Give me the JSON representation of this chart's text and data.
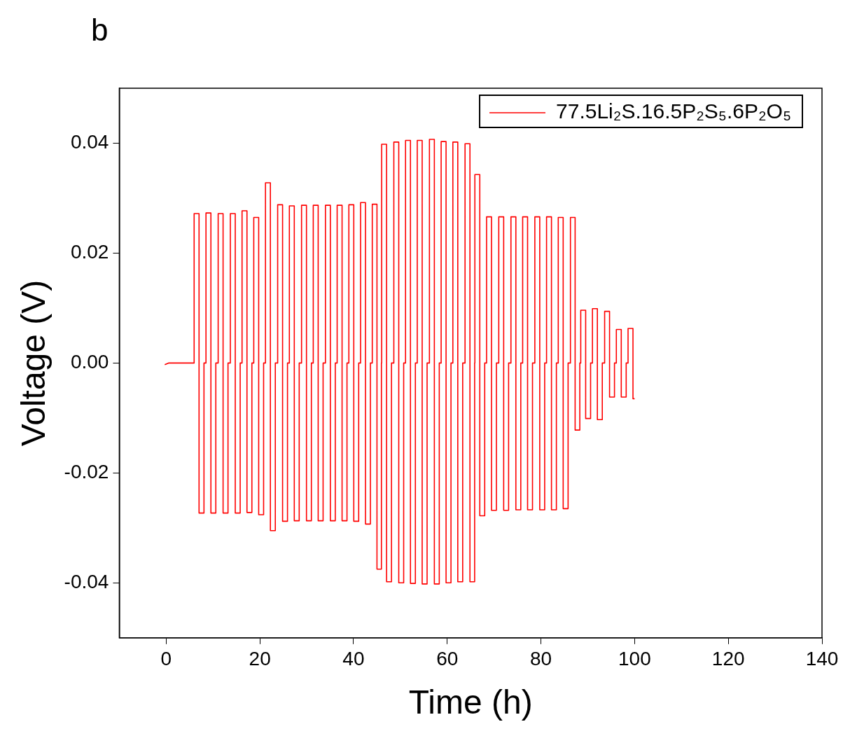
{
  "chart_data": {
    "type": "line",
    "annotations": [
      "b"
    ],
    "xlabel": "Time (h)",
    "ylabel": "Voltage (V)",
    "xlim": [
      -10,
      140
    ],
    "xticks": [
      0,
      20,
      40,
      60,
      80,
      100,
      120,
      140
    ],
    "ylim": [
      -0.05,
      0.05
    ],
    "yticks": [
      -0.04,
      -0.02,
      {
        "value": 0,
        "label": "0.00"
      },
      0.02,
      0.04
    ],
    "grid": false,
    "legend": "top right",
    "series": [
      {
        "name": "77.5Li₂S.16.5P₂S₅.6P₂O₅",
        "color": "#ff0000",
        "x": [
          -0.3,
          0.5,
          5.97,
          5.97,
          5.97,
          7.02,
          7.02,
          8.07,
          8.07,
          8.5,
          8.5,
          9.55,
          9.55,
          10.6,
          10.6,
          11.1,
          11.1,
          12.15,
          12.15,
          13.2,
          13.2,
          13.7,
          13.7,
          14.75,
          14.75,
          15.8,
          15.8,
          16.2,
          16.2,
          17.25,
          17.25,
          18.3,
          18.3,
          18.7,
          18.7,
          19.75,
          19.75,
          20.8,
          20.8,
          21.2,
          21.2,
          22.25,
          22.25,
          23.3,
          23.3,
          23.8,
          23.8,
          24.85,
          24.85,
          25.9,
          25.9,
          26.3,
          26.3,
          27.35,
          27.35,
          28.4,
          28.4,
          28.9,
          28.9,
          29.95,
          29.95,
          31.0,
          31.0,
          31.4,
          31.4,
          32.45,
          32.45,
          33.5,
          33.5,
          34.0,
          34.0,
          35.05,
          35.05,
          36.1,
          36.1,
          36.5,
          36.5,
          37.55,
          37.55,
          38.6,
          38.6,
          39.0,
          39.0,
          40.05,
          40.05,
          41.1,
          41.1,
          41.5,
          41.5,
          42.55,
          42.55,
          43.6,
          43.6,
          44.0,
          44.0,
          45.0,
          45.0,
          45.95,
          45.95,
          46.0,
          46.0,
          47.05,
          47.05,
          48.1,
          48.1,
          48.6,
          48.6,
          49.65,
          49.65,
          50.7,
          50.7,
          51.1,
          51.1,
          52.15,
          52.15,
          53.2,
          53.2,
          53.6,
          53.6,
          54.65,
          54.65,
          55.7,
          55.7,
          56.2,
          56.2,
          57.25,
          57.25,
          58.3,
          58.3,
          58.7,
          58.7,
          59.75,
          59.75,
          60.8,
          60.8,
          61.2,
          61.2,
          62.25,
          62.25,
          63.3,
          63.3,
          63.8,
          63.8,
          64.85,
          64.85,
          65.85,
          65.85,
          65.9,
          65.9,
          66.95,
          66.95,
          68.0,
          68.0,
          68.4,
          68.4,
          69.45,
          69.45,
          70.5,
          70.5,
          71.0,
          71.0,
          72.05,
          72.05,
          73.1,
          73.1,
          73.6,
          73.6,
          74.65,
          74.65,
          75.7,
          75.7,
          76.1,
          76.1,
          77.15,
          77.15,
          78.2,
          78.2,
          78.7,
          78.7,
          79.75,
          79.75,
          80.8,
          80.8,
          81.2,
          81.2,
          82.25,
          82.25,
          83.3,
          83.3,
          83.7,
          83.7,
          84.75,
          84.75,
          85.8,
          85.8,
          86.3,
          86.3,
          87.3,
          87.3,
          88.3,
          88.3,
          88.5,
          88.5,
          89.55,
          89.55,
          90.6,
          90.6,
          91.0,
          91.0,
          92.05,
          92.05,
          93.1,
          93.1,
          93.6,
          93.6,
          94.65,
          94.65,
          95.7,
          95.7,
          96.1,
          96.1,
          97.15,
          97.15,
          98.2,
          98.2,
          98.6,
          98.6,
          99.65,
          99.65,
          100.0
        ],
        "values": [
          -0.0003,
          0,
          0,
          0,
          0.0272,
          0.0272,
          -0.0273,
          -0.0273,
          0,
          0,
          0.0273,
          0.0273,
          -0.0273,
          -0.0273,
          0,
          0,
          0.0272,
          0.0272,
          -0.0273,
          -0.0273,
          0,
          0,
          0.0272,
          0.0272,
          -0.0273,
          -0.0273,
          0,
          0,
          0.0277,
          0.0277,
          -0.0272,
          -0.0272,
          0,
          0,
          0.0265,
          0.0265,
          -0.0276,
          -0.0276,
          0,
          0,
          0.0328,
          0.0328,
          -0.0305,
          -0.0305,
          0,
          0,
          0.0288,
          0.0288,
          -0.0288,
          -0.0288,
          0,
          0,
          0.0286,
          0.0286,
          -0.0287,
          -0.0287,
          0,
          0,
          0.0287,
          0.0287,
          -0.0287,
          -0.0287,
          0,
          0,
          0.0287,
          0.0287,
          -0.0287,
          -0.0287,
          0,
          0,
          0.0287,
          0.0287,
          -0.0287,
          -0.0287,
          0,
          0,
          0.0287,
          0.0287,
          -0.0287,
          -0.0287,
          0,
          0,
          0.0288,
          0.0288,
          -0.0288,
          -0.0288,
          0,
          0,
          0.0292,
          0.0292,
          -0.0293,
          -0.0293,
          0,
          0,
          0.0289,
          0.0289,
          -0.0375,
          -0.0375,
          0,
          0,
          0.0398,
          0.0398,
          -0.0398,
          -0.0398,
          0,
          0,
          0.0402,
          0.0402,
          -0.04,
          -0.04,
          0,
          0,
          0.0405,
          0.0405,
          -0.0401,
          -0.0401,
          0,
          0,
          0.0405,
          0.0405,
          -0.0402,
          -0.0402,
          0,
          0,
          0.0407,
          0.0407,
          -0.0402,
          -0.0402,
          0,
          0,
          0.0403,
          0.0403,
          -0.04,
          -0.04,
          0,
          0,
          0.0402,
          0.0402,
          -0.0398,
          -0.0398,
          0,
          0,
          0.0399,
          0.0399,
          -0.0398,
          -0.0398,
          0,
          0,
          0.0343,
          0.0343,
          -0.0278,
          -0.0278,
          0,
          0,
          0.0266,
          0.0266,
          -0.0268,
          -0.0268,
          0,
          0,
          0.0266,
          0.0266,
          -0.0268,
          -0.0268,
          0,
          0,
          0.0266,
          0.0266,
          -0.0267,
          -0.0267,
          0,
          0,
          0.0266,
          0.0266,
          -0.0267,
          -0.0267,
          0,
          0,
          0.0266,
          0.0266,
          -0.0267,
          -0.0267,
          0,
          0,
          0.0266,
          0.0266,
          -0.0267,
          -0.0267,
          0,
          0,
          0.0265,
          0.0265,
          -0.0265,
          -0.0265,
          0,
          0,
          0.0265,
          0.0265,
          -0.0122,
          -0.0122,
          0,
          0,
          0.0096,
          0.0096,
          -0.0101,
          -0.0101,
          0,
          0,
          0.0099,
          0.0099,
          -0.0103,
          -0.0103,
          0,
          0,
          0.0094,
          0.0094,
          -0.0062,
          -0.0062,
          0,
          0,
          0.0061,
          0.0061,
          -0.0062,
          -0.0062,
          0,
          0,
          0.0063,
          0.0063,
          -0.0065,
          -0.0065
        ]
      }
    ]
  }
}
